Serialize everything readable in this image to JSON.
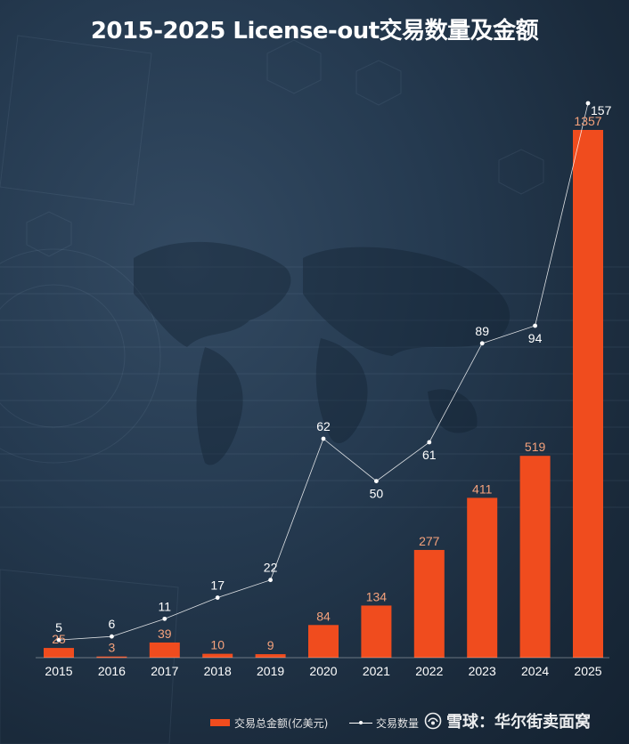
{
  "chart_data": {
    "type": "bar",
    "title": "2015-2025 License-out交易数量及金额",
    "categories": [
      "2015",
      "2016",
      "2017",
      "2018",
      "2019",
      "2020",
      "2021",
      "2022",
      "2023",
      "2024",
      "2025"
    ],
    "series": [
      {
        "name": "交易总金额(亿美元)",
        "type": "bar",
        "color": "#f04c1e",
        "label_color": "#f5a27c",
        "values": [
          25,
          3,
          39,
          10,
          9,
          84,
          134,
          277,
          411,
          519,
          1357
        ]
      },
      {
        "name": "交易数量",
        "type": "line",
        "color": "#ffffff",
        "label_color": "#ffffff",
        "values": [
          5,
          6,
          11,
          17,
          22,
          62,
          50,
          61,
          89,
          94,
          157
        ]
      }
    ],
    "bar_axis_range": [
      0,
      1400
    ],
    "line_axis_range": [
      0,
      160
    ],
    "grid": false,
    "legend_position": "bottom"
  },
  "watermark": {
    "text": "雪球：华尔街卖面窝",
    "icon": "snowball-logo-icon"
  },
  "colors": {
    "background": "#22364b",
    "bar": "#f04c1e",
    "line": "#ffffff"
  }
}
